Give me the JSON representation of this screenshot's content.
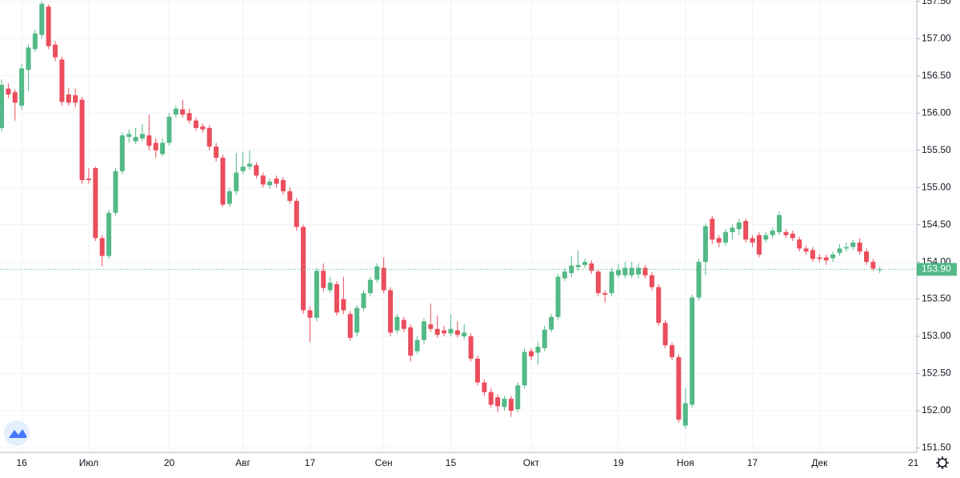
{
  "chart_data": {
    "type": "candlestick",
    "categories": [
      null,
      null,
      null,
      "16",
      null,
      null,
      null,
      null,
      null,
      null,
      null,
      null,
      null,
      "Июл",
      null,
      null,
      null,
      null,
      null,
      null,
      null,
      null,
      null,
      null,
      null,
      "20",
      null,
      null,
      null,
      null,
      null,
      null,
      null,
      null,
      null,
      null,
      "Авг",
      null,
      null,
      null,
      null,
      null,
      null,
      null,
      null,
      null,
      "17",
      null,
      null,
      null,
      null,
      null,
      null,
      null,
      null,
      null,
      null,
      "Сен",
      null,
      null,
      null,
      null,
      null,
      null,
      null,
      null,
      null,
      "15",
      null,
      null,
      null,
      null,
      null,
      null,
      null,
      null,
      null,
      null,
      null,
      "Окт",
      null,
      null,
      null,
      null,
      null,
      null,
      null,
      null,
      null,
      null,
      null,
      null,
      "19",
      null,
      null,
      null,
      null,
      null,
      null,
      null,
      null,
      null,
      "Ноя",
      null,
      null,
      null,
      null,
      null,
      null,
      null,
      null,
      null,
      "17",
      null,
      null,
      null,
      null,
      null,
      null,
      null,
      null,
      null,
      "Дек",
      null,
      null,
      null,
      null,
      null,
      null,
      null,
      null,
      null,
      null,
      null,
      null,
      null,
      "21"
    ],
    "open": [
      155.8,
      156.33,
      156.28,
      156.1,
      156.58,
      156.86,
      157.05,
      157.43,
      156.92,
      156.72,
      156.25,
      156.24,
      156.18,
      155.12,
      155.26,
      154.32,
      154.08,
      154.66,
      155.22,
      155.68,
      155.62,
      155.66,
      155.7,
      155.6,
      155.45,
      155.6,
      155.98,
      156.05,
      156.0,
      155.9,
      155.82,
      155.8,
      155.55,
      155.4,
      154.78,
      154.95,
      155.22,
      155.28,
      155.3,
      155.16,
      155.03,
      155.12,
      155.1,
      154.95,
      154.82,
      154.47,
      153.35,
      153.25,
      153.88,
      153.62,
      153.7,
      153.5,
      153.3,
      153.05,
      153.38,
      153.58,
      153.76,
      153.92,
      153.62,
      153.08,
      153.22,
      153.12,
      152.8,
      152.95,
      153.16,
      153.1,
      153.08,
      153.04,
      153.08,
      153.0,
      153.0,
      152.7,
      152.38,
      152.25,
      152.18,
      152.05,
      152.16,
      152.02,
      152.34,
      152.8,
      152.78,
      152.84,
      153.09,
      153.26,
      153.78,
      153.85,
      153.93,
      153.96,
      153.98,
      153.87,
      153.58,
      153.58,
      153.82,
      153.82,
      153.82,
      153.83,
      153.92,
      153.82,
      153.66,
      153.18,
      152.88,
      152.72,
      151.8,
      152.08,
      153.52,
      154.0,
      154.58,
      154.32,
      154.26,
      154.4,
      154.44,
      154.55,
      154.32,
      154.36,
      154.3,
      154.36,
      154.4,
      154.4,
      154.38,
      154.3,
      154.18,
      154.16,
      154.06,
      154.06,
      154.05,
      154.12,
      154.18,
      154.2,
      154.26,
      154.14,
      154.0,
      153.89,
      null,
      null,
      null,
      null,
      null
    ],
    "high": [
      156.45,
      156.4,
      156.32,
      156.66,
      156.92,
      157.12,
      157.5,
      157.46,
      156.97,
      156.76,
      156.34,
      156.33,
      156.22,
      155.26,
      155.28,
      154.36,
      154.7,
      155.26,
      155.74,
      155.78,
      155.8,
      155.85,
      155.98,
      155.66,
      155.66,
      156.0,
      156.1,
      156.18,
      156.06,
      155.94,
      155.86,
      155.84,
      155.6,
      155.44,
      155.0,
      155.46,
      155.48,
      155.5,
      155.34,
      155.2,
      155.12,
      155.16,
      155.14,
      155.0,
      154.86,
      154.5,
      153.4,
      153.92,
      153.98,
      153.8,
      153.74,
      153.8,
      153.34,
      153.42,
      153.62,
      153.8,
      153.98,
      154.06,
      153.66,
      153.3,
      153.26,
      153.16,
      153.0,
      153.24,
      153.44,
      153.28,
      153.14,
      153.3,
      153.2,
      153.16,
      153.04,
      152.74,
      152.42,
      152.3,
      152.22,
      152.2,
      152.2,
      152.38,
      152.84,
      152.84,
      152.92,
      153.14,
      153.3,
      153.84,
      153.92,
      154.08,
      154.16,
      154.04,
      154.02,
      153.9,
      153.62,
      153.92,
      153.98,
      154.0,
      154.0,
      153.98,
      153.96,
      153.86,
      153.7,
      153.22,
      152.92,
      152.76,
      152.3,
      153.56,
      154.04,
      154.52,
      154.62,
      154.36,
      154.44,
      154.5,
      154.58,
      154.58,
      154.36,
      154.4,
      154.4,
      154.46,
      154.68,
      154.44,
      154.42,
      154.34,
      154.22,
      154.2,
      154.1,
      154.1,
      154.14,
      154.24,
      154.26,
      154.3,
      154.32,
      154.18,
      154.04,
      153.94,
      null,
      null,
      null,
      null,
      null
    ],
    "low": [
      155.75,
      156.2,
      155.9,
      156.04,
      156.3,
      156.82,
      157.0,
      156.86,
      156.7,
      156.1,
      156.1,
      156.08,
      155.05,
      155.05,
      154.28,
      153.94,
      154.04,
      154.62,
      155.18,
      155.6,
      155.58,
      155.62,
      155.5,
      155.4,
      155.42,
      155.56,
      155.94,
      155.94,
      155.86,
      155.76,
      155.74,
      155.5,
      155.35,
      154.74,
      154.74,
      154.9,
      155.18,
      155.24,
      155.12,
      155.0,
      154.98,
      155.0,
      154.9,
      154.78,
      154.42,
      153.3,
      152.92,
      153.2,
      153.6,
      153.58,
      153.28,
      153.3,
      152.94,
      153.0,
      153.34,
      153.54,
      153.72,
      153.58,
      153.0,
      153.04,
      153.06,
      152.66,
      152.76,
      152.9,
      153.06,
      152.98,
      153.0,
      153.0,
      152.98,
      152.96,
      152.66,
      152.34,
      152.2,
      152.04,
      151.98,
      152.0,
      151.92,
      151.98,
      152.3,
      152.68,
      152.62,
      152.8,
      153.05,
      153.22,
      153.74,
      153.8,
      153.88,
      153.92,
      153.84,
      153.54,
      153.45,
      153.54,
      153.78,
      153.78,
      153.78,
      153.78,
      153.78,
      153.62,
      153.14,
      152.84,
      152.68,
      151.84,
      151.76,
      152.04,
      153.48,
      153.82,
      154.24,
      154.2,
      154.22,
      154.3,
      154.36,
      154.26,
      154.2,
      154.06,
      154.26,
      154.32,
      154.36,
      154.32,
      154.28,
      154.14,
      154.1,
      154.0,
      154.0,
      153.96,
      154.0,
      154.08,
      154.14,
      154.16,
      154.1,
      153.96,
      153.88,
      153.85,
      null,
      null,
      null,
      null,
      null
    ],
    "close": [
      156.38,
      156.25,
      156.14,
      156.6,
      156.88,
      157.07,
      157.47,
      156.9,
      156.75,
      156.15,
      156.14,
      156.14,
      155.1,
      155.1,
      154.32,
      154.08,
      154.66,
      155.22,
      155.7,
      155.72,
      155.68,
      155.72,
      155.56,
      155.5,
      155.6,
      155.95,
      156.06,
      155.98,
      155.9,
      155.8,
      155.78,
      155.55,
      155.4,
      154.77,
      154.95,
      155.2,
      155.28,
      155.32,
      155.16,
      155.04,
      155.08,
      155.05,
      154.95,
      154.82,
      154.47,
      153.35,
      153.25,
      153.88,
      153.65,
      153.72,
      153.32,
      153.35,
      152.98,
      153.38,
      153.58,
      153.76,
      153.94,
      153.62,
      153.05,
      153.26,
      153.1,
      152.74,
      152.95,
      153.2,
      153.1,
      153.02,
      153.04,
      153.1,
      153.02,
      153.05,
      152.7,
      152.38,
      152.25,
      152.08,
      152.06,
      152.16,
      152.0,
      152.34,
      152.79,
      152.73,
      152.86,
      153.09,
      153.26,
      153.8,
      153.87,
      153.95,
      153.96,
      154.0,
      153.88,
      153.58,
      153.56,
      153.87,
      153.89,
      153.92,
      153.92,
      153.92,
      153.82,
      153.66,
      153.18,
      152.88,
      152.72,
      151.88,
      152.1,
      153.52,
      154.0,
      154.48,
      154.3,
      154.26,
      154.4,
      154.46,
      154.53,
      154.3,
      154.26,
      154.1,
      154.36,
      154.42,
      154.63,
      154.36,
      154.32,
      154.18,
      154.14,
      154.04,
      154.04,
      154.02,
      154.1,
      154.18,
      154.2,
      154.26,
      154.14,
      154.0,
      153.91,
      153.9,
      null,
      null,
      null,
      null,
      null
    ],
    "up_color": "#53b987",
    "down_color": "#eb4d5c",
    "ylim": [
      151.44,
      157.52
    ],
    "yticks": [
      {
        "value": 151.5,
        "label": "151.50"
      },
      {
        "value": 152,
        "label": "152.00"
      },
      {
        "value": 152.5,
        "label": "152.50"
      },
      {
        "value": 153,
        "label": "153.00"
      },
      {
        "value": 153.5,
        "label": "153.50"
      },
      {
        "value": 154,
        "label": "154.00"
      },
      {
        "value": 154.5,
        "label": "154.50"
      },
      {
        "value": 155,
        "label": "155.00"
      },
      {
        "value": 155.5,
        "label": "155.50"
      },
      {
        "value": 156,
        "label": "156.00"
      },
      {
        "value": 156.5,
        "label": "156.50"
      },
      {
        "value": 157,
        "label": "157.00"
      },
      {
        "value": 157.5,
        "label": "157.50"
      }
    ],
    "last_price": {
      "value": 153.9,
      "label": "153.90"
    },
    "grid": true
  }
}
